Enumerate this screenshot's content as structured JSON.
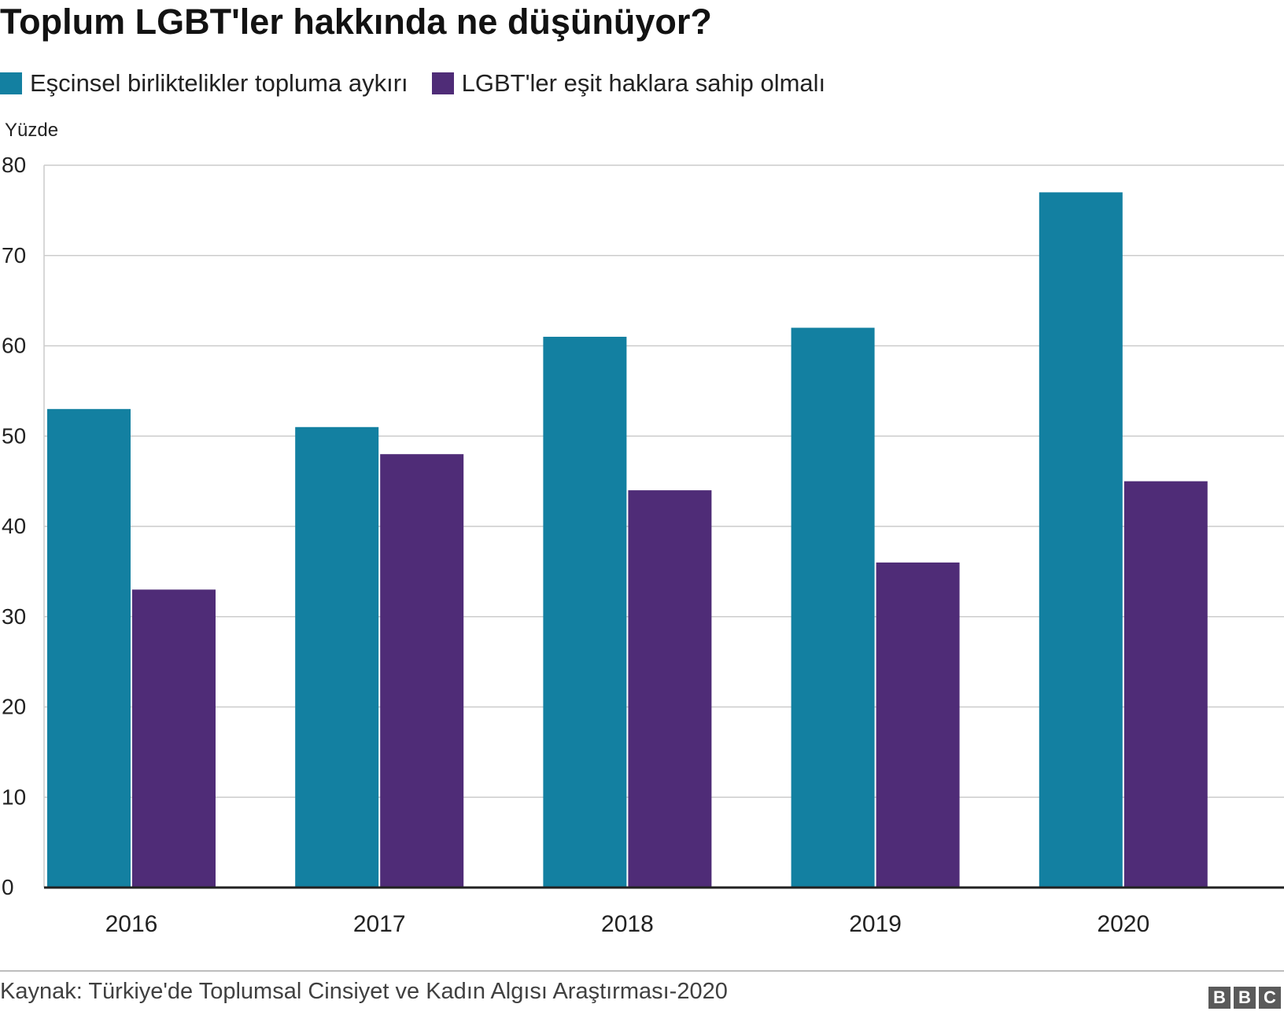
{
  "title": "Toplum LGBT'ler hakkında ne düşünüyor?",
  "colors": {
    "series1": "#1380A1",
    "series2": "#4F2C77",
    "grid": "#cccccc",
    "axis": "#222222"
  },
  "chart_data": {
    "type": "bar",
    "title": "Toplum LGBT'ler hakkında ne düşünüyor?",
    "ylabel": "Yüzde",
    "xlabel": "",
    "ylim": [
      0,
      80
    ],
    "yticks": [
      0,
      10,
      20,
      30,
      40,
      50,
      60,
      70,
      80
    ],
    "grid": true,
    "legend": "top-left",
    "categories": [
      "2016",
      "2017",
      "2018",
      "2019",
      "2020"
    ],
    "series": [
      {
        "name": "Eşcinsel birliktelikler topluma aykırı",
        "values": [
          53,
          51,
          61,
          62,
          77
        ],
        "color": "#1380A1"
      },
      {
        "name": "LGBT'ler eşit haklara sahip olmalı",
        "values": [
          33,
          48,
          44,
          36,
          45
        ],
        "color": "#4F2C77"
      }
    ]
  },
  "footer": {
    "source": "Kaynak: Türkiye'de Toplumsal Cinsiyet ve Kadın Algısı Araştırması-2020",
    "logo_letters": [
      "B",
      "B",
      "C"
    ]
  }
}
